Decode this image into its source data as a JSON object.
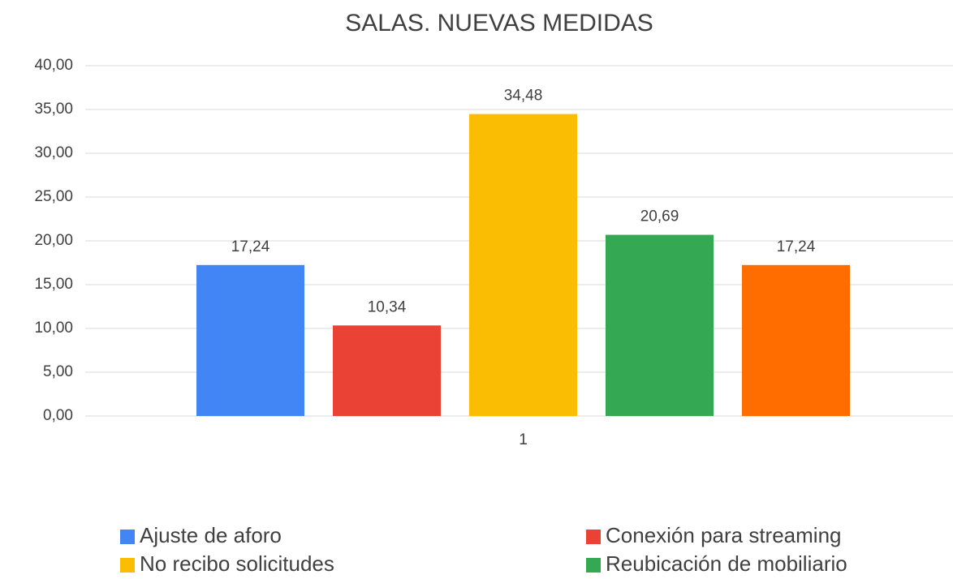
{
  "chart_data": {
    "type": "bar",
    "title": "SALAS. NUEVAS MEDIDAS",
    "categories": [
      "1"
    ],
    "series": [
      {
        "name": "Ajuste de aforo",
        "color": "#4285f4",
        "values": [
          17.24
        ],
        "value_labels": [
          "17,24"
        ]
      },
      {
        "name": "Conexión para streaming",
        "color": "#ea4335",
        "values": [
          10.34
        ],
        "value_labels": [
          "10,34"
        ]
      },
      {
        "name": "No recibo solicitudes",
        "color": "#fbbc04",
        "values": [
          34.48
        ],
        "value_labels": [
          "34,48"
        ]
      },
      {
        "name": "Reubicación de mobiliario",
        "color": "#34a853",
        "values": [
          20.69
        ],
        "value_labels": [
          "20,69"
        ]
      },
      {
        "color": "#ff6d01",
        "values": [
          17.24
        ],
        "value_labels": [
          "17,24"
        ]
      }
    ],
    "ylim": [
      0,
      40
    ],
    "yticks": [
      {
        "value": 0,
        "label": "0,00"
      },
      {
        "value": 5,
        "label": "5,00"
      },
      {
        "value": 10,
        "label": "10,00"
      },
      {
        "value": 15,
        "label": "15,00"
      },
      {
        "value": 20,
        "label": "20,00"
      },
      {
        "value": 25,
        "label": "25,00"
      },
      {
        "value": 30,
        "label": "30,00"
      },
      {
        "value": 35,
        "label": "35,00"
      },
      {
        "value": 40,
        "label": "40,00"
      }
    ],
    "grid": true,
    "legend": "bottom"
  }
}
